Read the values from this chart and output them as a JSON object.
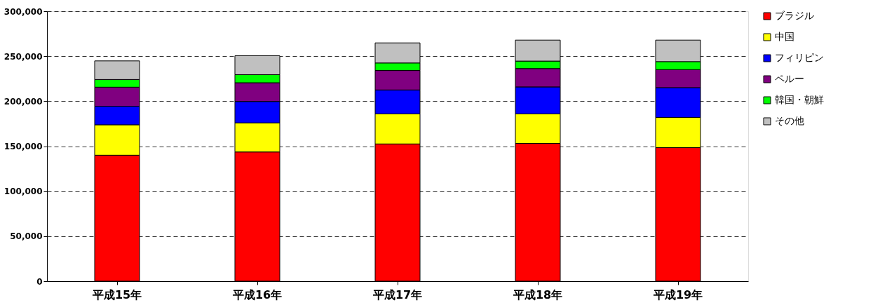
{
  "chart_data": {
    "type": "bar",
    "stacked": true,
    "categories": [
      "平成15年",
      "平成16年",
      "平成17年",
      "平成18年",
      "平成19年"
    ],
    "series": [
      {
        "name": "ブラジル",
        "color": "#ff0000",
        "values": [
          140000,
          143600,
          152500,
          153100,
          148400
        ]
      },
      {
        "name": "中国",
        "color": "#ffff00",
        "values": [
          33800,
          32300,
          33400,
          32800,
          33600
        ]
      },
      {
        "name": "フィリピン",
        "color": "#0000ff",
        "values": [
          20600,
          23800,
          26600,
          30000,
          33100
        ]
      },
      {
        "name": "ペルー",
        "color": "#800080",
        "values": [
          21200,
          20800,
          21600,
          20400,
          20000
        ]
      },
      {
        "name": "韓国・朝鮮",
        "color": "#00ff00",
        "values": [
          8500,
          9000,
          8400,
          8300,
          8900
        ]
      },
      {
        "name": "その他",
        "color": "#c0c0c0",
        "values": [
          20700,
          21000,
          22300,
          23300,
          23900
        ]
      }
    ],
    "ylim": [
      0,
      300000
    ],
    "yticks": [
      0,
      {
        "value": 50000,
        "label": "50,000"
      },
      {
        "value": 100000,
        "label": "100,000"
      },
      {
        "value": 150000,
        "label": "150,000"
      },
      {
        "value": 200000,
        "label": "200,000"
      },
      {
        "value": 250000,
        "label": "250,000"
      },
      {
        "value": 300000,
        "label": "300,000"
      }
    ],
    "grid": "y",
    "legend": "right"
  }
}
